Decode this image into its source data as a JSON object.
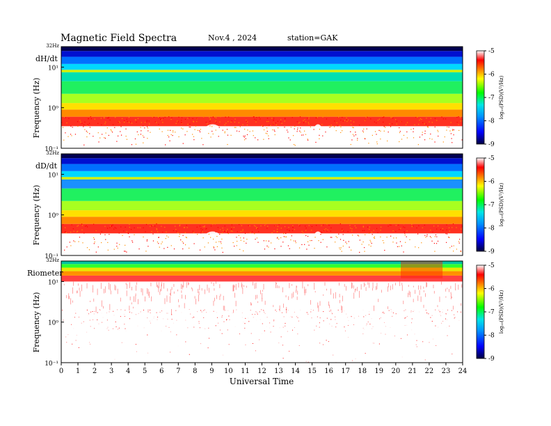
{
  "header": {
    "title": "Magnetic  Field  Spectra",
    "date": "Nov.4  , 2024",
    "station": "station=GAK"
  },
  "chart_data": [
    {
      "type": "heatmap",
      "panel_label": "dH/dt",
      "ylabel": "Frequency  (Hz)",
      "y_top_label": "32Hz",
      "y_ticks": [
        {
          "value": 10,
          "label": "10¹"
        },
        {
          "value": 1,
          "label": "10⁰"
        },
        {
          "value": 0.1,
          "label": "10⁻¹"
        }
      ],
      "ylim": [
        0.1,
        32
      ],
      "y_scale": "log",
      "xlim": [
        0,
        24
      ],
      "colorbar": {
        "label": "log₁₀(PSD)(V²/Hz)",
        "ticks": [
          -5,
          -6,
          -7,
          -8,
          -9
        ],
        "range": [
          -9,
          -5
        ]
      },
      "dominant_features": [
        {
          "band": "narrow line",
          "freq_hz": 8,
          "log_psd": -6.6
        },
        {
          "band": "enhanced broadband",
          "freq_hz_range": [
            0.2,
            1.5
          ],
          "hours": [
            7.8,
            10.2
          ]
        },
        {
          "band": "enhanced broadband",
          "freq_hz_range": [
            0.2,
            1.5
          ],
          "hours": [
            14.7,
            16.0
          ]
        }
      ]
    },
    {
      "type": "heatmap",
      "panel_label": "dD/dt",
      "ylabel": "Frequency  (Hz)",
      "y_top_label": "32Hz",
      "y_ticks": [
        {
          "value": 10,
          "label": "10¹"
        },
        {
          "value": 1,
          "label": "10⁰"
        },
        {
          "value": 0.1,
          "label": "10⁻¹"
        }
      ],
      "ylim": [
        0.1,
        32
      ],
      "y_scale": "log",
      "xlim": [
        0,
        24
      ],
      "colorbar": {
        "label": "log₁₀(PSD)(V²/Hz)",
        "ticks": [
          -5,
          -6,
          -7,
          -8,
          -9
        ],
        "range": [
          -9,
          -5
        ]
      },
      "dominant_features": [
        {
          "band": "narrow line",
          "freq_hz": 8,
          "log_psd": -6.6
        },
        {
          "band": "enhanced broadband",
          "freq_hz_range": [
            0.2,
            1.5
          ],
          "hours": [
            7.8,
            10.2
          ]
        },
        {
          "band": "enhanced broadband",
          "freq_hz_range": [
            0.2,
            1.5
          ],
          "hours": [
            14.7,
            16.0
          ]
        }
      ]
    },
    {
      "type": "heatmap",
      "panel_label": "Riometer",
      "ylabel": "Frequency  (Hz)",
      "y_top_label": "32Hz",
      "y_ticks": [
        {
          "value": 10,
          "label": "10¹"
        },
        {
          "value": 1,
          "label": "10⁰"
        },
        {
          "value": 0.1,
          "label": "10⁻¹"
        }
      ],
      "ylim": [
        0.1,
        32
      ],
      "y_scale": "log",
      "xlim": [
        0,
        24
      ],
      "colorbar": {
        "label": "log₁₀(PSD)(V²/Hz)",
        "ticks": [
          -5,
          -6,
          -7,
          -8,
          -9
        ],
        "range": [
          -9,
          -5
        ]
      },
      "dominant_features": [
        {
          "band": "high-frequency band",
          "freq_hz_range": [
            12,
            32
          ]
        },
        {
          "band": "disturbance",
          "hours": [
            20.3,
            22.8
          ]
        }
      ]
    }
  ],
  "xaxis": {
    "label": "Universal  Time",
    "ticks": [
      0,
      1,
      2,
      3,
      4,
      5,
      6,
      7,
      8,
      9,
      10,
      11,
      12,
      13,
      14,
      15,
      16,
      17,
      18,
      19,
      20,
      21,
      22,
      23,
      24
    ]
  },
  "colors": {
    "scale": [
      "#000050",
      "#0000ff",
      "#00c8ff",
      "#00ff80",
      "#ffff00",
      "#ff8000",
      "#ff0000",
      "#ffffff"
    ]
  }
}
